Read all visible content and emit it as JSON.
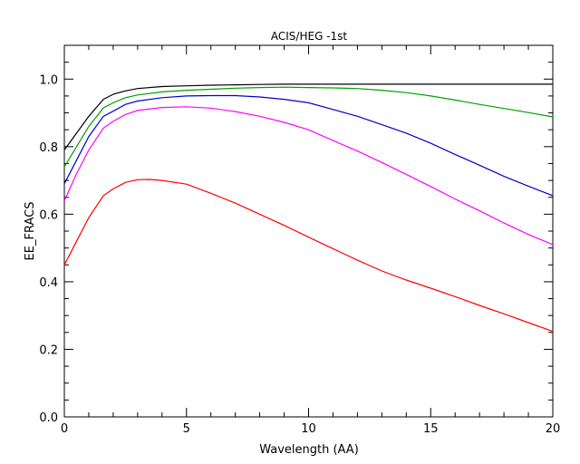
{
  "chart_data": {
    "type": "line",
    "title": "ACIS/HEG -1st",
    "xlabel": "Wavelength (AA)",
    "ylabel": "EE_FRACS",
    "xlim": [
      0,
      20
    ],
    "ylim": [
      0,
      1.1
    ],
    "x_ticks": [
      0,
      5,
      10,
      15,
      20
    ],
    "x_tick_labels": [
      "0",
      "5",
      "10",
      "15",
      "20"
    ],
    "y_ticks": [
      0,
      0.2,
      0.4,
      0.6,
      0.8,
      1.0
    ],
    "y_tick_labels": [
      "0.0",
      "0.2",
      "0.4",
      "0.6",
      "0.8",
      "1.0"
    ],
    "grid": false,
    "legend": "none",
    "series": [
      {
        "color": "#000000",
        "x": [
          0,
          0.5,
          1,
          1.6,
          2,
          2.5,
          3,
          4,
          5,
          6,
          7,
          8,
          9,
          10,
          12,
          14,
          16,
          18,
          20
        ],
        "y": [
          0.79,
          0.84,
          0.89,
          0.94,
          0.955,
          0.965,
          0.972,
          0.978,
          0.98,
          0.982,
          0.983,
          0.984,
          0.985,
          0.985,
          0.985,
          0.985,
          0.985,
          0.985,
          0.985
        ]
      },
      {
        "color": "#00a000",
        "x": [
          0,
          0.5,
          1,
          1.6,
          2,
          2.5,
          3,
          4,
          5,
          6,
          7,
          8,
          9,
          10,
          11,
          12,
          13,
          14,
          15,
          16,
          17,
          18,
          19,
          20
        ],
        "y": [
          0.74,
          0.8,
          0.86,
          0.915,
          0.93,
          0.945,
          0.953,
          0.962,
          0.967,
          0.97,
          0.973,
          0.975,
          0.976,
          0.975,
          0.974,
          0.972,
          0.967,
          0.96,
          0.95,
          0.938,
          0.925,
          0.913,
          0.901,
          0.888
        ]
      },
      {
        "color": "#0000cc",
        "x": [
          0,
          0.5,
          1,
          1.6,
          2,
          2.5,
          3,
          4,
          5,
          6,
          7,
          8,
          9,
          10,
          11,
          12,
          13,
          14,
          15,
          16,
          17,
          18,
          19,
          20
        ],
        "y": [
          0.69,
          0.76,
          0.83,
          0.89,
          0.905,
          0.925,
          0.935,
          0.945,
          0.95,
          0.951,
          0.951,
          0.947,
          0.94,
          0.93,
          0.91,
          0.89,
          0.865,
          0.84,
          0.81,
          0.777,
          0.745,
          0.712,
          0.683,
          0.655
        ]
      },
      {
        "color": "#ff00ff",
        "x": [
          0,
          0.5,
          1,
          1.6,
          2,
          2.5,
          3,
          4,
          5,
          6,
          7,
          8,
          9,
          10,
          11,
          12,
          13,
          14,
          15,
          16,
          17,
          18,
          19,
          20
        ],
        "y": [
          0.64,
          0.72,
          0.79,
          0.855,
          0.875,
          0.895,
          0.907,
          0.916,
          0.918,
          0.914,
          0.904,
          0.89,
          0.872,
          0.85,
          0.818,
          0.787,
          0.753,
          0.718,
          0.682,
          0.645,
          0.61,
          0.574,
          0.54,
          0.51
        ]
      },
      {
        "color": "#ff0000",
        "x": [
          0,
          0.5,
          1,
          1.6,
          2,
          2.5,
          3,
          3.5,
          4,
          5,
          6,
          7,
          8,
          9,
          10,
          11,
          12,
          13,
          14,
          15,
          16,
          17,
          18,
          19,
          20
        ],
        "y": [
          0.45,
          0.52,
          0.59,
          0.655,
          0.675,
          0.694,
          0.702,
          0.703,
          0.7,
          0.689,
          0.662,
          0.633,
          0.6,
          0.567,
          0.532,
          0.498,
          0.464,
          0.432,
          0.405,
          0.381,
          0.356,
          0.33,
          0.305,
          0.279,
          0.253
        ]
      }
    ]
  }
}
